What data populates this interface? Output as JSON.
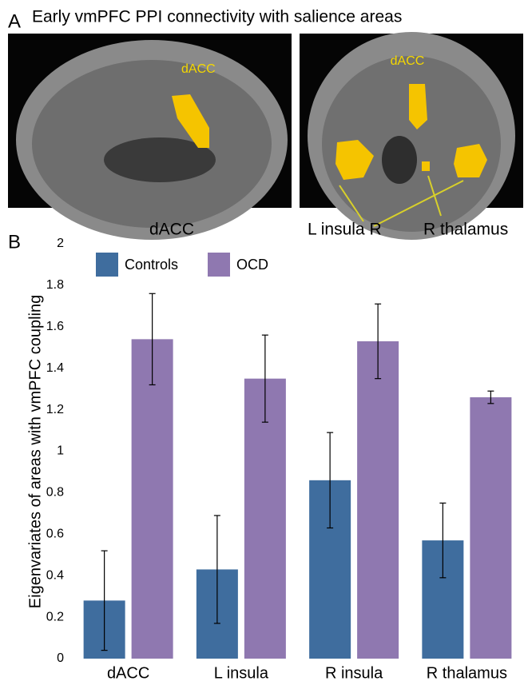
{
  "panel_a": {
    "label": "A",
    "title": "Early vmPFC PPI connectivity with salience areas",
    "image_labels": [
      "dACC",
      "dACC"
    ],
    "captions": [
      "dACC",
      "L insula R",
      "R thalamus"
    ]
  },
  "chart_data": {
    "type": "bar",
    "panel_label": "B",
    "y_label": "Eigenvariates of areas with vmPFC coupling",
    "categories": [
      "dACC",
      "L insula",
      "R insula",
      "R thalamus"
    ],
    "series": [
      {
        "name": "Controls",
        "color": "#3f6d9e",
        "values": [
          0.28,
          0.43,
          0.86,
          0.57
        ],
        "errors": [
          0.24,
          0.26,
          0.23,
          0.18
        ]
      },
      {
        "name": "OCD",
        "color": "#8f78b0",
        "values": [
          1.54,
          1.35,
          1.53,
          1.26
        ],
        "errors": [
          0.22,
          0.21,
          0.18,
          0.03
        ]
      }
    ],
    "ylim": [
      0,
      2
    ],
    "yticks": [
      0,
      0.2,
      0.4,
      0.6,
      0.8,
      1,
      1.2,
      1.4,
      1.6,
      1.8,
      2
    ],
    "grid": false,
    "legend": "top-left"
  }
}
